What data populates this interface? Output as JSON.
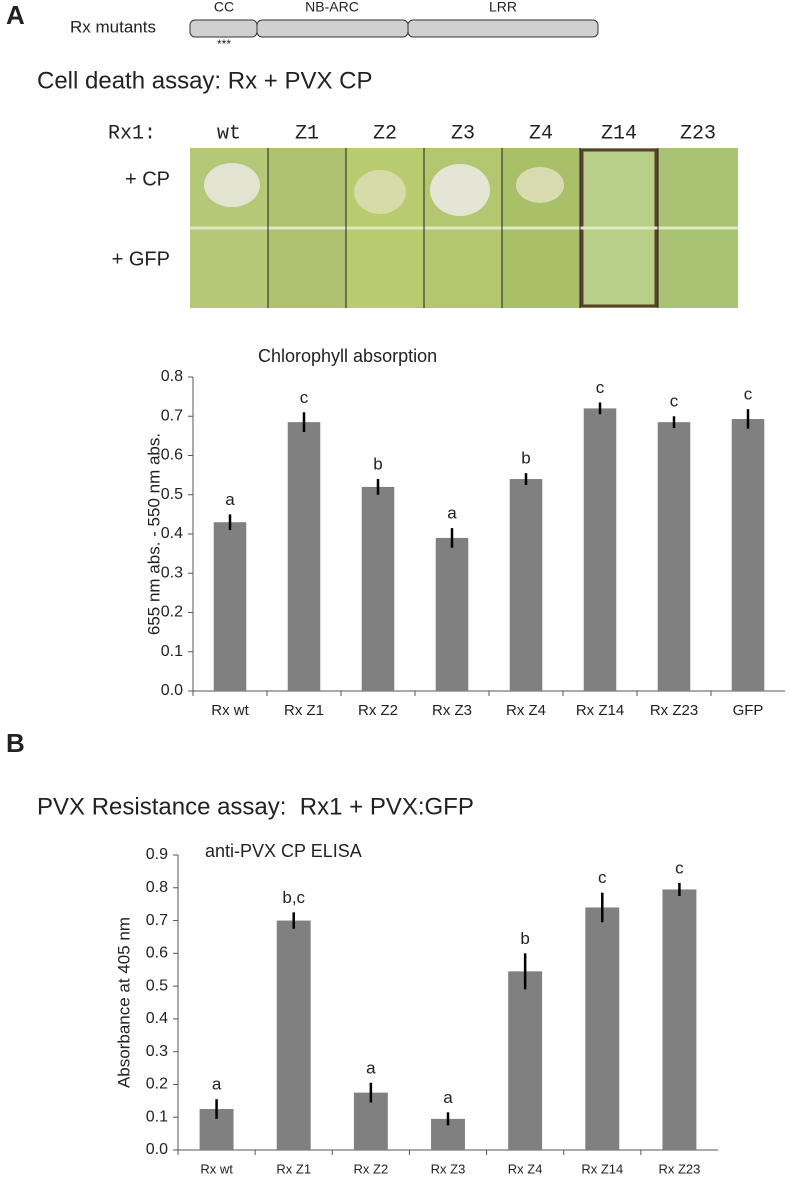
{
  "panel_a": {
    "label": "A",
    "domain_title": "Rx mutants",
    "domains": [
      "CC",
      "NB-ARC",
      "LRR"
    ],
    "mutation_marks": "***",
    "assay_title": "Cell death assay: Rx + PVX CP",
    "photo": {
      "row_header": "Rx1:",
      "columns": [
        "wt",
        "Z1",
        "Z2",
        "Z3",
        "Z4",
        "Z14",
        "Z23"
      ],
      "rows": [
        "+ CP",
        "+ GFP"
      ]
    }
  },
  "panel_b": {
    "label": "B",
    "assay_title": "PVX Resistance assay:  Rx1 + PVX:GFP"
  },
  "chart_data": [
    {
      "type": "bar",
      "title": "Chlorophyll absorption",
      "y_label": "655 nm abs. - 550 nm abs.",
      "categories": [
        "Rx wt",
        "Rx Z1",
        "Rx Z2",
        "Rx Z3",
        "Rx Z4",
        "Rx Z14",
        "Rx Z23",
        "GFP"
      ],
      "values": [
        0.43,
        0.685,
        0.52,
        0.39,
        0.54,
        0.72,
        0.685,
        0.693
      ],
      "errors": [
        0.02,
        0.025,
        0.02,
        0.025,
        0.015,
        0.015,
        0.015,
        0.025
      ],
      "letters": [
        "a",
        "c",
        "b",
        "a",
        "b",
        "c",
        "c",
        "c"
      ],
      "color": "#808080",
      "ylim": [
        0,
        0.8
      ],
      "yticks": [
        {
          "value": 0,
          "label": "0.0"
        },
        0.1,
        0.2,
        0.3,
        0.4,
        0.5,
        0.6,
        0.7,
        0.8
      ]
    },
    {
      "type": "bar",
      "title": "anti-PVX CP ELISA",
      "y_label": "Absorbance at 405 nm",
      "categories": [
        "Rx wt",
        "Rx Z1",
        "Rx Z2",
        "Rx Z3",
        "Rx Z4",
        "Rx Z14",
        "Rx Z23"
      ],
      "values": [
        0.125,
        0.7,
        0.175,
        0.095,
        0.545,
        0.74,
        0.795
      ],
      "errors": [
        0.03,
        0.025,
        0.03,
        0.02,
        0.055,
        0.045,
        0.02
      ],
      "letters": [
        "a",
        "b,c",
        "a",
        "a",
        "b",
        "c",
        "c"
      ],
      "color": "#808080",
      "ylim": [
        0,
        0.9
      ],
      "yticks": [
        {
          "value": 0,
          "label": "0.0"
        },
        0.1,
        0.2,
        0.3,
        0.4,
        0.5,
        0.6,
        0.7,
        0.8,
        0.9
      ]
    }
  ]
}
